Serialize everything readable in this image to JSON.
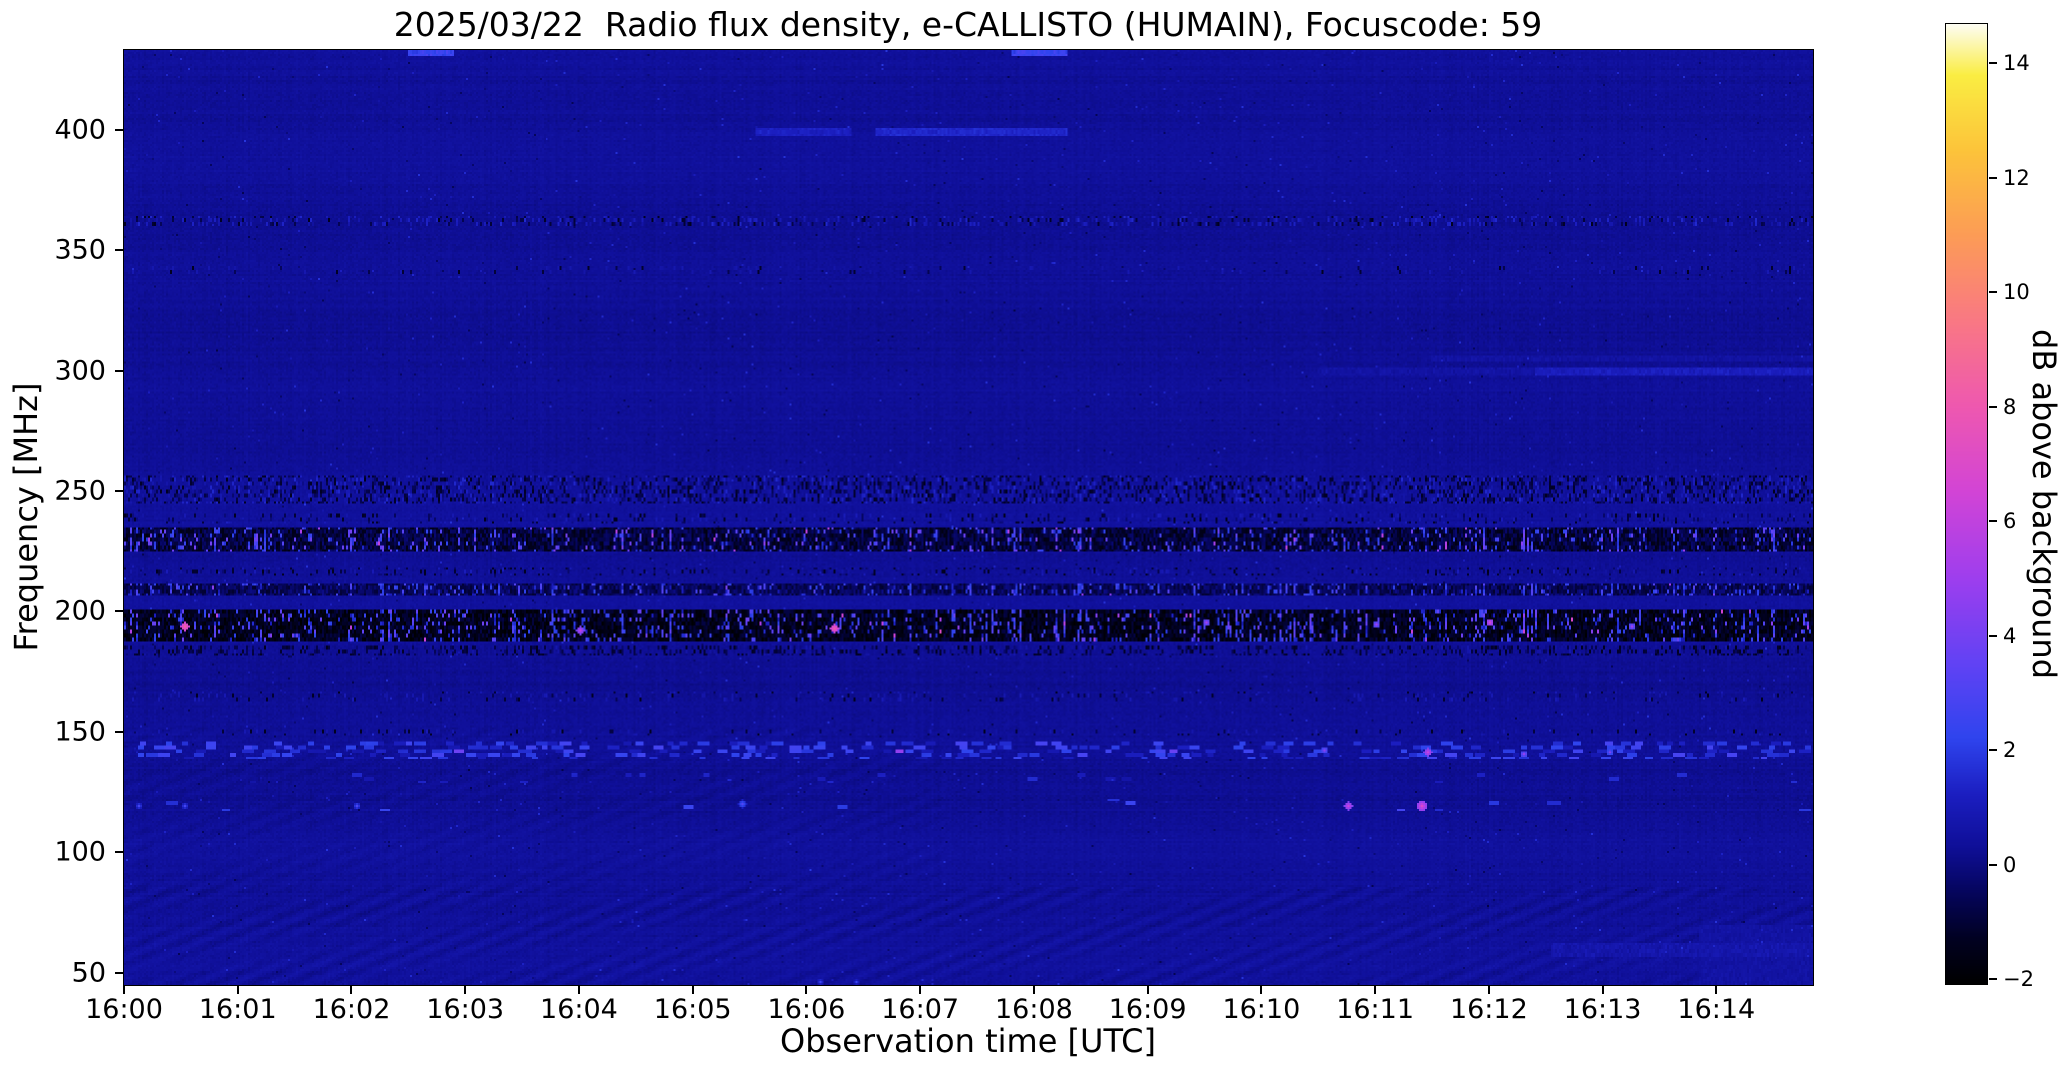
{
  "chart_data": {
    "type": "heatmap",
    "title": "2025/03/22  Radio flux density, e-CALLISTO (HUMAIN), Focuscode: 59",
    "xlabel": "Observation time [UTC]",
    "ylabel": "Frequency [MHz]",
    "x_range_min": [
      0,
      14.85
    ],
    "y_range_mhz": [
      45,
      433
    ],
    "x_ticks": [
      {
        "m": 0,
        "label": "16:00"
      },
      {
        "m": 1,
        "label": "16:01"
      },
      {
        "m": 2,
        "label": "16:02"
      },
      {
        "m": 3,
        "label": "16:03"
      },
      {
        "m": 4,
        "label": "16:04"
      },
      {
        "m": 5,
        "label": "16:05"
      },
      {
        "m": 6,
        "label": "16:06"
      },
      {
        "m": 7,
        "label": "16:07"
      },
      {
        "m": 8,
        "label": "16:08"
      },
      {
        "m": 9,
        "label": "16:09"
      },
      {
        "m": 10,
        "label": "16:10"
      },
      {
        "m": 11,
        "label": "16:11"
      },
      {
        "m": 12,
        "label": "16:12"
      },
      {
        "m": 13,
        "label": "16:13"
      },
      {
        "m": 14,
        "label": "16:14"
      }
    ],
    "y_ticks": [
      {
        "v": 400,
        "label": "400"
      },
      {
        "v": 350,
        "label": "350"
      },
      {
        "v": 300,
        "label": "300"
      },
      {
        "v": 250,
        "label": "250"
      },
      {
        "v": 200,
        "label": "200"
      },
      {
        "v": 150,
        "label": "150"
      },
      {
        "v": 100,
        "label": "100"
      },
      {
        "v": 50,
        "label": "50"
      }
    ],
    "colorbar": {
      "label": "dB above background",
      "range": [
        -2.1,
        14.7
      ],
      "ticks": [
        {
          "v": 14,
          "label": "14"
        },
        {
          "v": 12,
          "label": "12"
        },
        {
          "v": 10,
          "label": "10"
        },
        {
          "v": 8,
          "label": "8"
        },
        {
          "v": 6,
          "label": "6"
        },
        {
          "v": 4,
          "label": "4"
        },
        {
          "v": 2,
          "label": "2"
        },
        {
          "v": 0,
          "label": "0"
        },
        {
          "v": -2,
          "label": "−2"
        }
      ],
      "stops": [
        [
          -2.1,
          [
            0,
            0,
            0
          ]
        ],
        [
          -1.3,
          [
            1,
            1,
            34
          ]
        ],
        [
          -0.5,
          [
            5,
            5,
            92
          ]
        ],
        [
          0.3,
          [
            15,
            15,
            152
          ]
        ],
        [
          1.2,
          [
            27,
            30,
            192
          ]
        ],
        [
          2.2,
          [
            47,
            68,
            238
          ]
        ],
        [
          3.5,
          [
            97,
            66,
            244
          ]
        ],
        [
          5,
          [
            158,
            62,
            238
          ]
        ],
        [
          6.5,
          [
            210,
            68,
            214
          ]
        ],
        [
          8,
          [
            238,
            88,
            176
          ]
        ],
        [
          9.5,
          [
            249,
            120,
            132
          ]
        ],
        [
          11,
          [
            252,
            156,
            86
          ]
        ],
        [
          12.5,
          [
            252,
            196,
            58
          ]
        ],
        [
          13.8,
          [
            250,
            237,
            66
          ]
        ],
        [
          14.7,
          [
            253,
            253,
            244
          ]
        ]
      ]
    },
    "background_db": 0.3,
    "features": [
      {
        "name": "top-edge-burst",
        "type": "line",
        "f": [
          430.5,
          433
        ],
        "segments": [
          [
            2.5,
            2.9
          ],
          [
            7.8,
            8.3
          ]
        ],
        "base": 2.4,
        "noise": 0.5
      },
      {
        "name": "line-400-a",
        "type": "line",
        "f": [
          397.5,
          400.5
        ],
        "segments": [
          [
            5.55,
            6.4
          ]
        ],
        "base": 1.2,
        "noise": 0.3
      },
      {
        "name": "line-400-b",
        "type": "line",
        "f": [
          397.5,
          400.5
        ],
        "segments": [
          [
            6.6,
            8.3
          ]
        ],
        "base": 1.4,
        "noise": 0.3
      },
      {
        "name": "speckle-362",
        "type": "speckle",
        "f": [
          360,
          364.5
        ],
        "p": 0.2,
        "v": [
          0.4,
          1.5
        ],
        "darkp": 0.08
      },
      {
        "name": "speckle-342",
        "type": "speckle",
        "f": [
          340,
          343.5
        ],
        "p": 0.07,
        "v": [
          0.3,
          0.9
        ],
        "darkp": 0.03
      },
      {
        "name": "line-300-faint",
        "type": "line",
        "f": [
          297.5,
          301.5
        ],
        "segments": [
          [
            10.5,
            14.85
          ]
        ],
        "base": 0.55,
        "noise": 0.25
      },
      {
        "name": "line-300-bright",
        "type": "line",
        "f": [
          298,
          301
        ],
        "segments": [
          [
            12.4,
            14.85
          ]
        ],
        "base": 1.1,
        "noise": 0.3
      },
      {
        "name": "line-305",
        "type": "line",
        "f": [
          303.5,
          305.8
        ],
        "segments": [
          [
            11.5,
            14.85
          ]
        ],
        "base": 0.5,
        "noise": 0.22
      },
      {
        "name": "speckle-250",
        "type": "speckle",
        "f": [
          244.5,
          256
        ],
        "p": 0.32,
        "v": [
          -0.9,
          1.5
        ],
        "darkp": 0.16
      },
      {
        "name": "speckle-239",
        "type": "speckle",
        "f": [
          236.5,
          241
        ],
        "p": 0.13,
        "v": [
          -0.5,
          1.1
        ],
        "darkp": 0.07
      },
      {
        "name": "dark-230",
        "type": "dark",
        "f": [
          225,
          234.5
        ],
        "base": -0.95,
        "noise": 0.75,
        "brightp": 0.16,
        "brightv": [
          1.4,
          4.0
        ],
        "hotp": 0.008,
        "hotv": [
          4.2,
          6.2
        ]
      },
      {
        "name": "speckle-217",
        "type": "speckle",
        "f": [
          215,
          218.5
        ],
        "p": 0.1,
        "v": [
          -0.4,
          1.1
        ],
        "darkp": 0.08
      },
      {
        "name": "dark-210",
        "type": "dark",
        "f": [
          206.5,
          212
        ],
        "base": -0.55,
        "noise": 0.6,
        "brightp": 0.2,
        "brightv": [
          0.9,
          3.2
        ],
        "hotp": 0.003,
        "hotv": [
          3.8,
          5.2
        ]
      },
      {
        "name": "dark-195",
        "type": "dark",
        "f": [
          187.5,
          200.5
        ],
        "base": -1.45,
        "noise": 0.65,
        "brightp": 0.2,
        "brightv": [
          0.9,
          3.8
        ],
        "hotp": 0.01,
        "hotv": [
          4.2,
          7.0
        ]
      },
      {
        "name": "speckle-184",
        "type": "speckle",
        "f": [
          182,
          186
        ],
        "p": 0.18,
        "v": [
          -0.8,
          0.8
        ],
        "darkp": 0.2
      },
      {
        "name": "speckle-165",
        "type": "speckle",
        "f": [
          162.5,
          166.5
        ],
        "p": 0.09,
        "v": [
          0.3,
          1.0
        ],
        "darkp": 0.04
      },
      {
        "name": "speckle-150",
        "type": "speckle",
        "f": [
          148.5,
          151.5
        ],
        "p": 0.07,
        "v": [
          0.3,
          0.9
        ],
        "darkp": 0.03
      },
      {
        "name": "dash-143",
        "type": "dash",
        "f": [
          138.5,
          146
        ],
        "p": 0.09,
        "len": [
          2,
          6
        ],
        "v": [
          0.8,
          2.8
        ],
        "hotp": 0.008,
        "hotv": [
          3.5,
          5.5
        ]
      },
      {
        "name": "dash-131",
        "type": "dash",
        "f": [
          128.5,
          132.5
        ],
        "p": 0.008,
        "len": [
          2,
          5
        ],
        "v": [
          0.6,
          1.6
        ]
      },
      {
        "name": "dash-120",
        "type": "dash",
        "f": [
          117.5,
          122.5
        ],
        "p": 0.003,
        "len": [
          3,
          7
        ],
        "v": [
          1.5,
          3.0
        ]
      },
      {
        "name": "wave-low",
        "type": "wave",
        "f": [
          45,
          86
        ],
        "amp": 0.2
      },
      {
        "name": "wave-mid",
        "type": "wave",
        "f": [
          86,
          152
        ],
        "x": [
          0,
          7.2
        ],
        "amp": 0.1
      },
      {
        "name": "line-60",
        "type": "line",
        "f": [
          56.5,
          62
        ],
        "segments": [
          [
            12.55,
            14.85
          ]
        ],
        "base": 0.7,
        "noise": 0.3
      },
      {
        "name": "corner-bottom-right",
        "type": "line",
        "f": [
          45,
          70
        ],
        "segments": [
          [
            13.85,
            14.85
          ]
        ],
        "base": 0.5,
        "noise": 0.22
      }
    ],
    "hotspots": [
      {
        "x": 0.52,
        "f": 194,
        "v": 8.5,
        "r": 2.2
      },
      {
        "x": 4.0,
        "f": 192.5,
        "v": 6.0,
        "r": 2
      },
      {
        "x": 6.23,
        "f": 193.5,
        "v": 8.2,
        "r": 2.2
      },
      {
        "x": 9.5,
        "f": 196,
        "v": 5.2,
        "r": 1.6
      },
      {
        "x": 11.0,
        "f": 195,
        "v": 5.0,
        "r": 1.6
      },
      {
        "x": 12.0,
        "f": 196,
        "v": 6.5,
        "r": 1.8
      },
      {
        "x": 13.25,
        "f": 194.5,
        "v": 5.0,
        "r": 1.6
      },
      {
        "x": 10.75,
        "f": 120,
        "v": 6.2,
        "r": 2.2
      },
      {
        "x": 11.4,
        "f": 119.5,
        "v": 6.8,
        "r": 2.4
      },
      {
        "x": 11.45,
        "f": 142,
        "v": 6.2,
        "r": 2.2
      },
      {
        "x": 10.55,
        "f": 142.5,
        "v": 4.4,
        "r": 1.8
      },
      {
        "x": 12.3,
        "f": 141.5,
        "v": 4.6,
        "r": 1.8
      },
      {
        "x": 13.05,
        "f": 142,
        "v": 4.2,
        "r": 1.6
      },
      {
        "x": 0.12,
        "f": 120,
        "v": 2.8,
        "r": 1.8
      },
      {
        "x": 0.52,
        "f": 120,
        "v": 2.8,
        "r": 1.8
      },
      {
        "x": 2.03,
        "f": 120,
        "v": 3.0,
        "r": 1.8
      },
      {
        "x": 5.43,
        "f": 120.5,
        "v": 3.2,
        "r": 2.2
      },
      {
        "x": 6.11,
        "f": 46.5,
        "v": 2.6,
        "r": 1.8
      },
      {
        "x": 6.44,
        "f": 46.5,
        "v": 2.4,
        "r": 1.8
      }
    ]
  }
}
